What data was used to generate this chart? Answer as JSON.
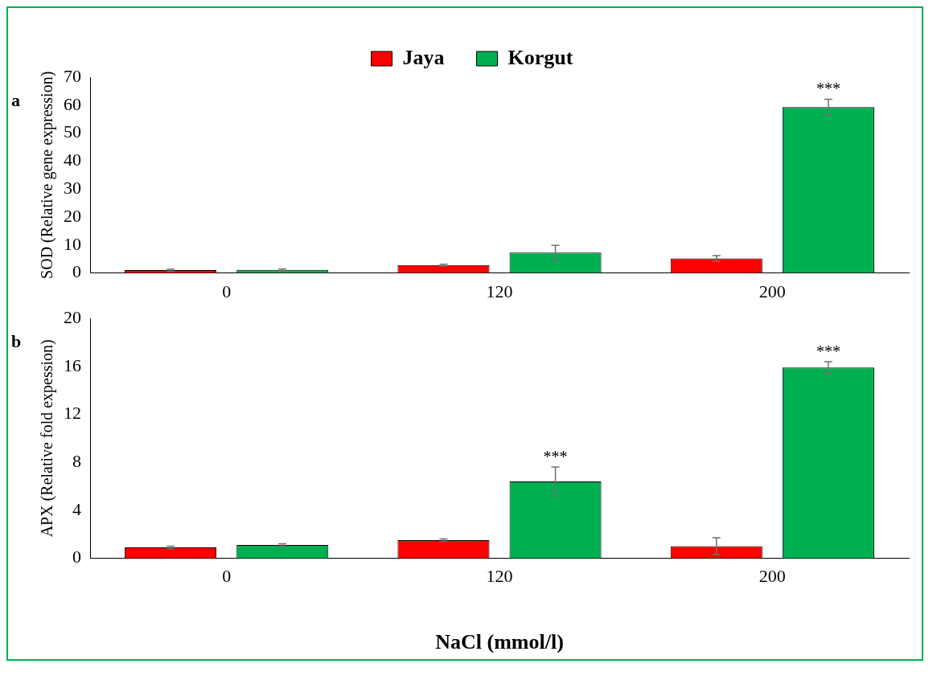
{
  "chart_data": [
    {
      "type": "bar",
      "ylabel": "SOD (Relative gene expression)",
      "categories": [
        "0",
        "120",
        "200"
      ],
      "series": [
        {
          "name": "Jaya",
          "color": "#ff0000",
          "values": [
            1,
            2.8,
            5.2
          ],
          "errors": [
            0.3,
            0.3,
            1
          ]
        },
        {
          "name": "Korgut",
          "color": "#00b050",
          "values": [
            1.1,
            7.3,
            59.3
          ],
          "errors": [
            0.3,
            2.6,
            2.8
          ],
          "value_labels": [
            null,
            null,
            "***"
          ]
        }
      ],
      "ylim": [
        0,
        70
      ],
      "yticks": [
        0,
        10,
        20,
        30,
        40,
        50,
        60,
        70
      ],
      "grid": false,
      "legend": "top",
      "annotations": [
        "a"
      ]
    },
    {
      "type": "bar",
      "ylabel": "APX (Relative fold expession)",
      "xlabel": "NaCl (mmol/l)",
      "categories": [
        "0",
        "120",
        "200"
      ],
      "series": [
        {
          "color": "#ff0000",
          "values": [
            0.9,
            1.5,
            1.0
          ],
          "errors": [
            0.1,
            0.1,
            0.7
          ]
        },
        {
          "color": "#00b050",
          "values": [
            1.1,
            6.4,
            15.9
          ],
          "errors": [
            0.1,
            1.2,
            0.5
          ],
          "value_labels": [
            null,
            "***",
            "***"
          ]
        }
      ],
      "ylim": [
        0,
        20
      ],
      "yticks": [
        0,
        4,
        8,
        12,
        16,
        20
      ],
      "grid": false,
      "legend": false,
      "annotations": [
        "b"
      ]
    }
  ]
}
